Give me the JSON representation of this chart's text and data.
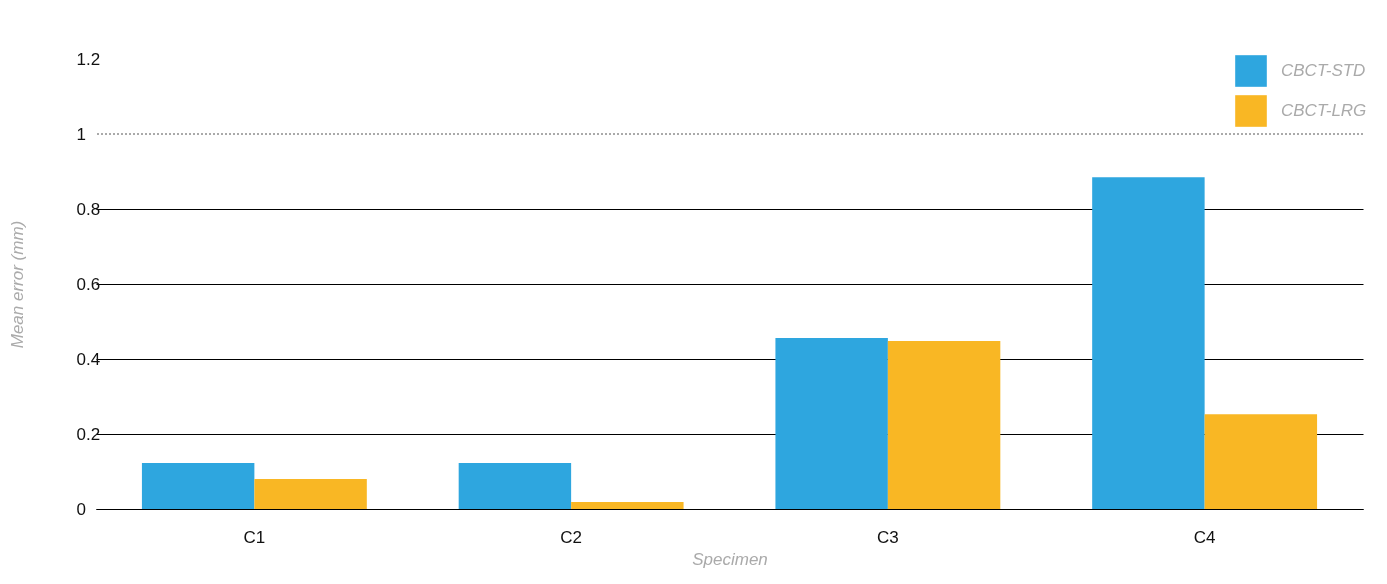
{
  "chart_data": {
    "type": "bar",
    "xlabel": "Specimen",
    "ylabel": "Mean error (mm)",
    "categories": [
      "C1",
      "C2",
      "C3",
      "C4"
    ],
    "series": [
      {
        "name": "CBCT-STD",
        "color": "#2ea6df",
        "values": [
          0.123,
          0.123,
          0.456,
          0.885
        ]
      },
      {
        "name": "CBCT-LRG",
        "color": "#f9b724",
        "values": [
          0.08,
          0.019,
          0.448,
          0.253
        ]
      }
    ],
    "ylim": [
      0,
      1.2
    ],
    "yticks": [
      0,
      0.2,
      0.4,
      0.6,
      0.8,
      1,
      1.2
    ],
    "grid": "y",
    "legend": "top right",
    "ref_lines": [
      {
        "axis": "y",
        "value": 1,
        "line_style": "dotted"
      }
    ]
  }
}
